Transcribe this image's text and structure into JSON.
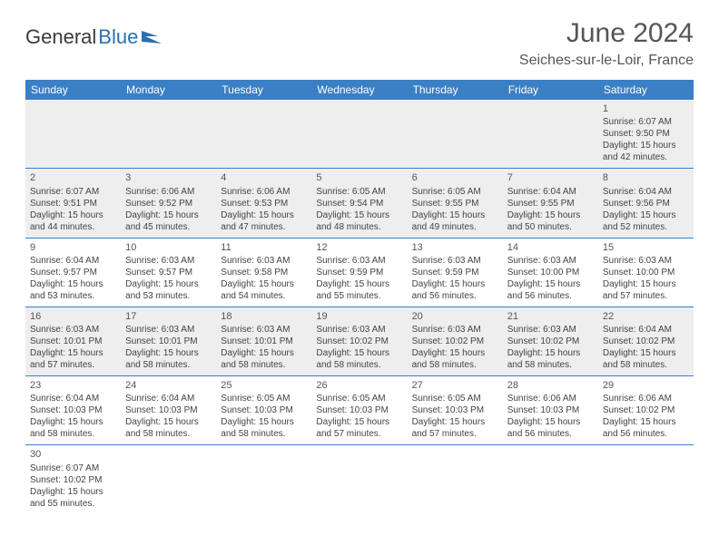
{
  "brand": {
    "part1": "General",
    "part2": "Blue"
  },
  "title": "June 2024",
  "location": "Seiches-sur-le-Loir, France",
  "colors": {
    "header_bg": "#3b7fc4",
    "header_text": "#ffffff",
    "row_alt_bg": "#eeeeee",
    "border": "#3b7fc4",
    "text": "#444444",
    "title_text": "#555555"
  },
  "weekdays": [
    "Sunday",
    "Monday",
    "Tuesday",
    "Wednesday",
    "Thursday",
    "Friday",
    "Saturday"
  ],
  "weeks": [
    [
      {
        "blank": true
      },
      {
        "blank": true
      },
      {
        "blank": true
      },
      {
        "blank": true
      },
      {
        "blank": true
      },
      {
        "blank": true
      },
      {
        "day": "1",
        "sunrise": "Sunrise: 6:07 AM",
        "sunset": "Sunset: 9:50 PM",
        "daylight1": "Daylight: 15 hours",
        "daylight2": "and 42 minutes."
      }
    ],
    [
      {
        "day": "2",
        "sunrise": "Sunrise: 6:07 AM",
        "sunset": "Sunset: 9:51 PM",
        "daylight1": "Daylight: 15 hours",
        "daylight2": "and 44 minutes."
      },
      {
        "day": "3",
        "sunrise": "Sunrise: 6:06 AM",
        "sunset": "Sunset: 9:52 PM",
        "daylight1": "Daylight: 15 hours",
        "daylight2": "and 45 minutes."
      },
      {
        "day": "4",
        "sunrise": "Sunrise: 6:06 AM",
        "sunset": "Sunset: 9:53 PM",
        "daylight1": "Daylight: 15 hours",
        "daylight2": "and 47 minutes."
      },
      {
        "day": "5",
        "sunrise": "Sunrise: 6:05 AM",
        "sunset": "Sunset: 9:54 PM",
        "daylight1": "Daylight: 15 hours",
        "daylight2": "and 48 minutes."
      },
      {
        "day": "6",
        "sunrise": "Sunrise: 6:05 AM",
        "sunset": "Sunset: 9:55 PM",
        "daylight1": "Daylight: 15 hours",
        "daylight2": "and 49 minutes."
      },
      {
        "day": "7",
        "sunrise": "Sunrise: 6:04 AM",
        "sunset": "Sunset: 9:55 PM",
        "daylight1": "Daylight: 15 hours",
        "daylight2": "and 50 minutes."
      },
      {
        "day": "8",
        "sunrise": "Sunrise: 6:04 AM",
        "sunset": "Sunset: 9:56 PM",
        "daylight1": "Daylight: 15 hours",
        "daylight2": "and 52 minutes."
      }
    ],
    [
      {
        "day": "9",
        "sunrise": "Sunrise: 6:04 AM",
        "sunset": "Sunset: 9:57 PM",
        "daylight1": "Daylight: 15 hours",
        "daylight2": "and 53 minutes."
      },
      {
        "day": "10",
        "sunrise": "Sunrise: 6:03 AM",
        "sunset": "Sunset: 9:57 PM",
        "daylight1": "Daylight: 15 hours",
        "daylight2": "and 53 minutes."
      },
      {
        "day": "11",
        "sunrise": "Sunrise: 6:03 AM",
        "sunset": "Sunset: 9:58 PM",
        "daylight1": "Daylight: 15 hours",
        "daylight2": "and 54 minutes."
      },
      {
        "day": "12",
        "sunrise": "Sunrise: 6:03 AM",
        "sunset": "Sunset: 9:59 PM",
        "daylight1": "Daylight: 15 hours",
        "daylight2": "and 55 minutes."
      },
      {
        "day": "13",
        "sunrise": "Sunrise: 6:03 AM",
        "sunset": "Sunset: 9:59 PM",
        "daylight1": "Daylight: 15 hours",
        "daylight2": "and 56 minutes."
      },
      {
        "day": "14",
        "sunrise": "Sunrise: 6:03 AM",
        "sunset": "Sunset: 10:00 PM",
        "daylight1": "Daylight: 15 hours",
        "daylight2": "and 56 minutes."
      },
      {
        "day": "15",
        "sunrise": "Sunrise: 6:03 AM",
        "sunset": "Sunset: 10:00 PM",
        "daylight1": "Daylight: 15 hours",
        "daylight2": "and 57 minutes."
      }
    ],
    [
      {
        "day": "16",
        "sunrise": "Sunrise: 6:03 AM",
        "sunset": "Sunset: 10:01 PM",
        "daylight1": "Daylight: 15 hours",
        "daylight2": "and 57 minutes."
      },
      {
        "day": "17",
        "sunrise": "Sunrise: 6:03 AM",
        "sunset": "Sunset: 10:01 PM",
        "daylight1": "Daylight: 15 hours",
        "daylight2": "and 58 minutes."
      },
      {
        "day": "18",
        "sunrise": "Sunrise: 6:03 AM",
        "sunset": "Sunset: 10:01 PM",
        "daylight1": "Daylight: 15 hours",
        "daylight2": "and 58 minutes."
      },
      {
        "day": "19",
        "sunrise": "Sunrise: 6:03 AM",
        "sunset": "Sunset: 10:02 PM",
        "daylight1": "Daylight: 15 hours",
        "daylight2": "and 58 minutes."
      },
      {
        "day": "20",
        "sunrise": "Sunrise: 6:03 AM",
        "sunset": "Sunset: 10:02 PM",
        "daylight1": "Daylight: 15 hours",
        "daylight2": "and 58 minutes."
      },
      {
        "day": "21",
        "sunrise": "Sunrise: 6:03 AM",
        "sunset": "Sunset: 10:02 PM",
        "daylight1": "Daylight: 15 hours",
        "daylight2": "and 58 minutes."
      },
      {
        "day": "22",
        "sunrise": "Sunrise: 6:04 AM",
        "sunset": "Sunset: 10:02 PM",
        "daylight1": "Daylight: 15 hours",
        "daylight2": "and 58 minutes."
      }
    ],
    [
      {
        "day": "23",
        "sunrise": "Sunrise: 6:04 AM",
        "sunset": "Sunset: 10:03 PM",
        "daylight1": "Daylight: 15 hours",
        "daylight2": "and 58 minutes."
      },
      {
        "day": "24",
        "sunrise": "Sunrise: 6:04 AM",
        "sunset": "Sunset: 10:03 PM",
        "daylight1": "Daylight: 15 hours",
        "daylight2": "and 58 minutes."
      },
      {
        "day": "25",
        "sunrise": "Sunrise: 6:05 AM",
        "sunset": "Sunset: 10:03 PM",
        "daylight1": "Daylight: 15 hours",
        "daylight2": "and 58 minutes."
      },
      {
        "day": "26",
        "sunrise": "Sunrise: 6:05 AM",
        "sunset": "Sunset: 10:03 PM",
        "daylight1": "Daylight: 15 hours",
        "daylight2": "and 57 minutes."
      },
      {
        "day": "27",
        "sunrise": "Sunrise: 6:05 AM",
        "sunset": "Sunset: 10:03 PM",
        "daylight1": "Daylight: 15 hours",
        "daylight2": "and 57 minutes."
      },
      {
        "day": "28",
        "sunrise": "Sunrise: 6:06 AM",
        "sunset": "Sunset: 10:03 PM",
        "daylight1": "Daylight: 15 hours",
        "daylight2": "and 56 minutes."
      },
      {
        "day": "29",
        "sunrise": "Sunrise: 6:06 AM",
        "sunset": "Sunset: 10:02 PM",
        "daylight1": "Daylight: 15 hours",
        "daylight2": "and 56 minutes."
      }
    ],
    [
      {
        "day": "30",
        "sunrise": "Sunrise: 6:07 AM",
        "sunset": "Sunset: 10:02 PM",
        "daylight1": "Daylight: 15 hours",
        "daylight2": "and 55 minutes."
      },
      {
        "blank": true
      },
      {
        "blank": true
      },
      {
        "blank": true
      },
      {
        "blank": true
      },
      {
        "blank": true
      },
      {
        "blank": true
      }
    ]
  ]
}
